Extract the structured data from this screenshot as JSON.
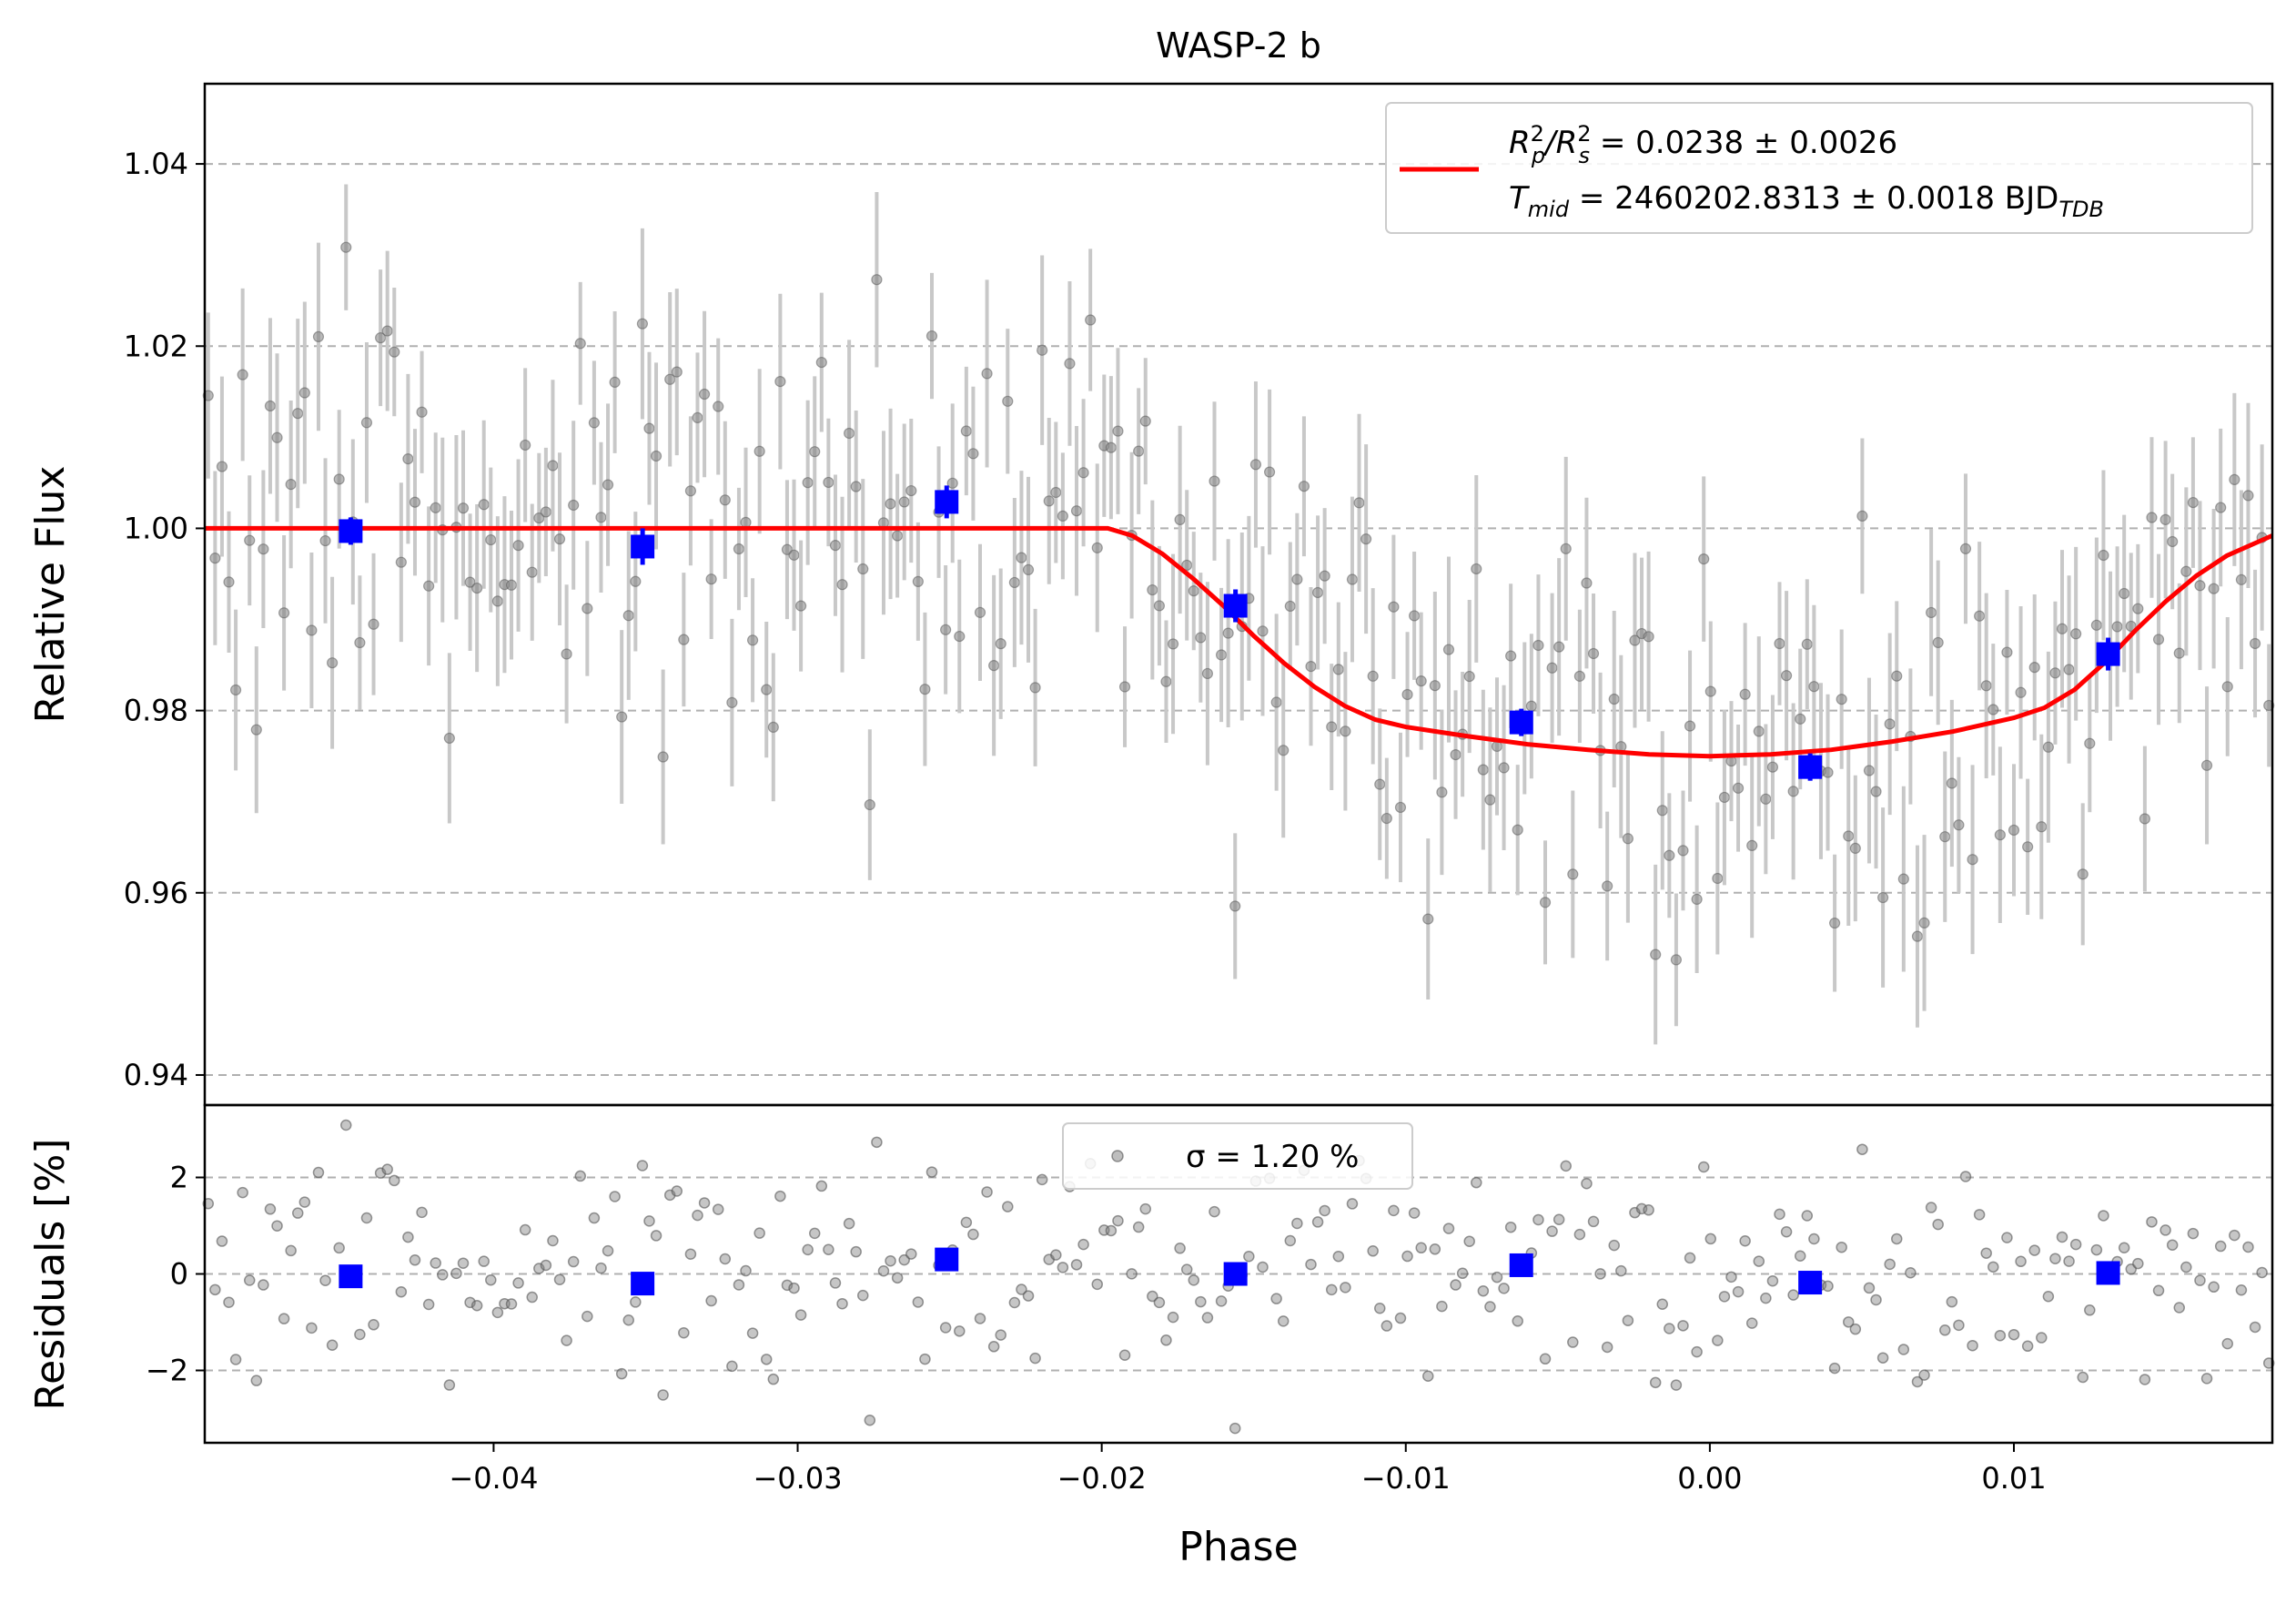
{
  "chart_data": [
    {
      "panel": "main",
      "type": "scatter",
      "title": "WASP-2 b",
      "xlabel": "",
      "ylabel": "Relative Flux",
      "xlim": [
        -0.0495,
        0.0185
      ],
      "ylim": [
        0.9367,
        1.0488
      ],
      "grid": {
        "y": true,
        "style": "dashed"
      },
      "yticks": [
        0.94,
        0.96,
        0.98,
        1.0,
        1.02,
        1.04
      ],
      "ytick_labels": [
        "0.94",
        "0.96",
        "0.98",
        "1.00",
        "1.02",
        "1.04"
      ],
      "legend": {
        "position": "top-right",
        "line1": [
          "R",
          "p",
          "2",
          "/R",
          "s",
          "2",
          " = 0.0238 ± 0.0026"
        ],
        "line2": [
          "T",
          "mid",
          " = 2460202.8313 ± 0.0018 BJD",
          "TDB"
        ]
      },
      "series": [
        {
          "role": "model",
          "color": "#ff0000",
          "x": [
            -0.0495,
            -0.04,
            -0.03,
            -0.022,
            -0.0198,
            -0.019,
            -0.018,
            -0.017,
            -0.016,
            -0.015,
            -0.014,
            -0.013,
            -0.012,
            -0.011,
            -0.01,
            -0.009,
            -0.008,
            -0.006,
            -0.004,
            -0.002,
            0.0,
            0.002,
            0.004,
            0.006,
            0.008,
            0.01,
            0.011,
            0.012,
            0.013,
            0.014,
            0.015,
            0.016,
            0.017,
            0.0185
          ],
          "y": [
            1.0,
            1.0,
            1.0,
            1.0,
            1.0,
            0.9992,
            0.9972,
            0.9945,
            0.9915,
            0.9882,
            0.9852,
            0.9826,
            0.9805,
            0.979,
            0.9782,
            0.9777,
            0.9772,
            0.9763,
            0.9757,
            0.9752,
            0.975,
            0.9752,
            0.9757,
            0.9766,
            0.9777,
            0.9792,
            0.9803,
            0.9823,
            0.9853,
            0.9888,
            0.992,
            0.9948,
            0.997,
            0.9992
          ]
        },
        {
          "role": "binned",
          "color": "#0000ff",
          "x": [
            -0.0447,
            -0.0351,
            -0.0251,
            -0.0156,
            -0.0062,
            0.0033,
            0.0131
          ],
          "y": [
            0.9997,
            0.998,
            1.0029,
            0.9915,
            0.9787,
            0.9738,
            0.9862
          ],
          "yerr": [
            0.0015,
            0.002,
            0.0018,
            0.0018,
            0.0015,
            0.0015,
            0.0018
          ]
        }
      ]
    },
    {
      "panel": "residuals",
      "type": "scatter",
      "xlabel": "Phase",
      "ylabel": "Residuals [%]",
      "xlim": [
        -0.0495,
        0.0185
      ],
      "ylim": [
        -3.5,
        3.5
      ],
      "grid": {
        "y": true,
        "style": "dashed"
      },
      "yticks": [
        -2,
        0,
        2
      ],
      "ytick_labels": [
        "−2",
        "0",
        "2"
      ],
      "xticks": [
        -0.04,
        -0.03,
        -0.02,
        -0.01,
        0.0,
        0.01
      ],
      "xtick_labels": [
        "−0.04",
        "−0.03",
        "−0.02",
        "−0.01",
        "0.00",
        "0.01"
      ],
      "legend": {
        "position": "top-center",
        "label": "σ = 1.20 %"
      },
      "series": [
        {
          "role": "binned",
          "color": "#0000ff",
          "x": [
            -0.0447,
            -0.0351,
            -0.0251,
            -0.0156,
            -0.0062,
            0.0033,
            0.0131
          ],
          "y": [
            -0.05,
            -0.2,
            0.3,
            0.0,
            0.18,
            -0.18,
            0.02
          ]
        }
      ]
    }
  ]
}
